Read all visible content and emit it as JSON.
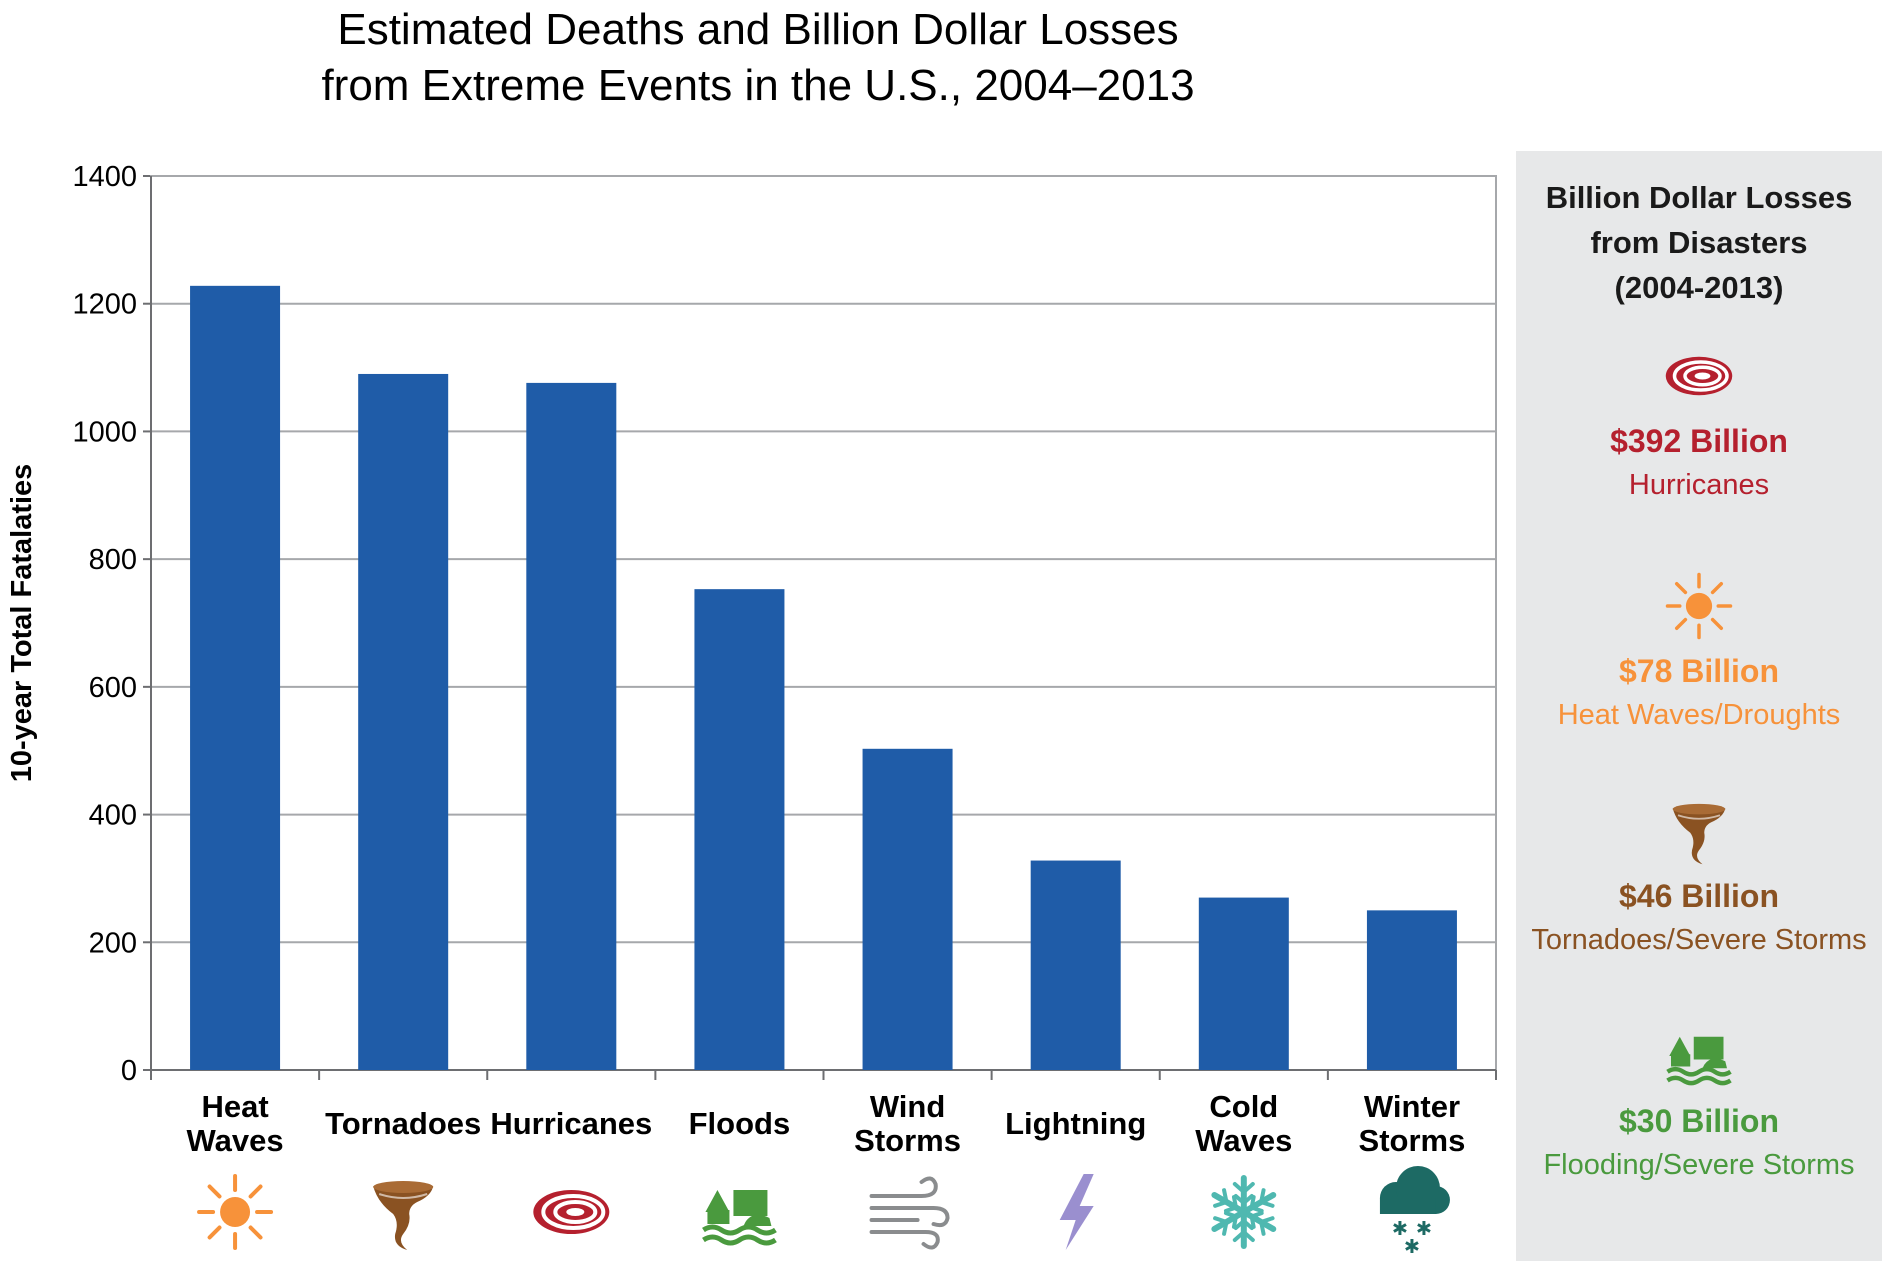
{
  "title_lines": [
    "Estimated Deaths and Billion Dollar Losses",
    "from Extreme Events in the U.S., 2004–2013"
  ],
  "chart_data": {
    "type": "bar",
    "title": "Estimated Deaths and Billion Dollar Losses from Extreme Events in the U.S., 2004–2013",
    "xlabel": "",
    "ylabel": "10-year Total Fatalaties",
    "ylim": [
      0,
      1400
    ],
    "yticks": [
      0,
      200,
      400,
      600,
      800,
      1000,
      1200,
      1400
    ],
    "grid": true,
    "categories": [
      [
        "Heat",
        "Waves"
      ],
      [
        "Tornadoes"
      ],
      [
        "Hurricanes"
      ],
      [
        "Floods"
      ],
      [
        "Wind",
        "Storms"
      ],
      [
        "Lightning"
      ],
      [
        "Cold",
        "Waves"
      ],
      [
        "Winter",
        "Storms"
      ]
    ],
    "category_icons": [
      "sun-icon",
      "tornado-icon",
      "hurricane-icon",
      "flood-icon",
      "wind-icon",
      "lightning-icon",
      "snowflake-icon",
      "snow-cloud-icon"
    ],
    "values": [
      1228,
      1090,
      1076,
      753,
      503,
      328,
      270,
      250
    ],
    "bar_color": "#1f5ca8"
  },
  "side_panel": {
    "title_lines": [
      "Billion Dollar Losses",
      "from Disasters",
      "(2004-2013)"
    ],
    "items": [
      {
        "icon": "hurricane-icon",
        "amount": "$392 Billion",
        "label": "Hurricanes",
        "color": "#b5202e"
      },
      {
        "icon": "sun-icon",
        "amount": "$78 Billion",
        "label": "Heat Waves/Droughts",
        "color": "#f7923a"
      },
      {
        "icon": "tornado-icon",
        "amount": "$46 Billion",
        "label": "Tornadoes/Severe Storms",
        "color": "#8a5222"
      },
      {
        "icon": "flood-icon",
        "amount": "$30 Billion",
        "label": "Flooding/Severe Storms",
        "color": "#4a9a3e"
      }
    ]
  },
  "colors": {
    "sun": "#f7923a",
    "tornado": "#8a5222",
    "hurricane": "#b5202e",
    "flood": "#4a9a3e",
    "wind": "#8a8c8e",
    "lightning": "#9a8fcf",
    "snowflake": "#4fb8b0",
    "snow_cloud": "#1d6a64"
  }
}
